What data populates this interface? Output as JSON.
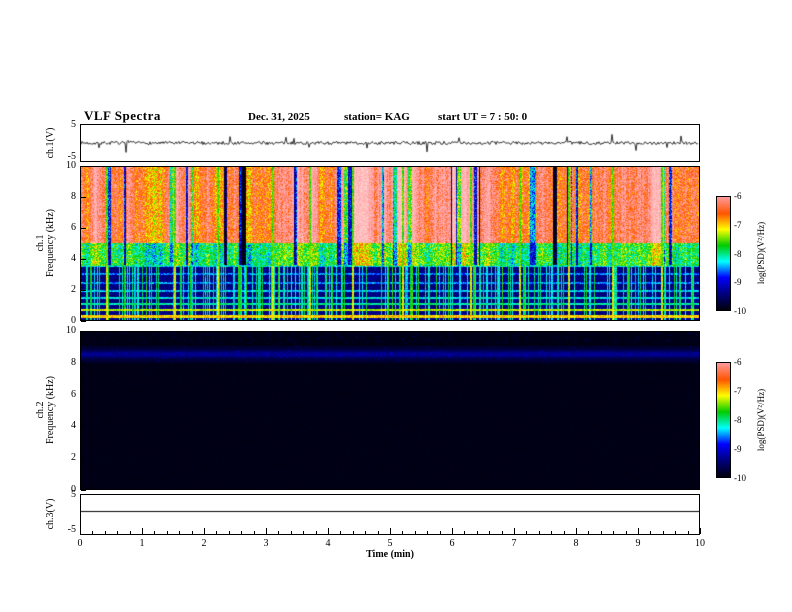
{
  "header": {
    "title": "VLF Spectra",
    "date": "Dec. 31, 2025",
    "station": "station= KAG",
    "start_ut": "start UT = 7 : 50: 0"
  },
  "axes": {
    "time_label": "Time (min)",
    "time_ticks": [
      "0",
      "1",
      "2",
      "3",
      "4",
      "5",
      "6",
      "7",
      "8",
      "9",
      "10"
    ],
    "freq_ticks": [
      "10",
      "8",
      "6",
      "4",
      "2",
      "0"
    ],
    "volt_ticks": [
      "5",
      "-5"
    ]
  },
  "panels": {
    "ch1_wave_label": "ch.1(V)",
    "ch1_spec_label1": "ch.1",
    "ch1_spec_label2": "Frequency (kHz)",
    "ch2_spec_label1": "ch.2",
    "ch2_spec_label2": "Frequency (kHz)",
    "ch3_wave_label": "ch.3(V)"
  },
  "colorbar": {
    "label": "log(PSD)(V²/Hz)",
    "ticks": [
      "-6",
      "-7",
      "-8",
      "-9",
      "-10"
    ],
    "range": [
      -10,
      -6
    ],
    "colors": [
      "#000010",
      "#00007f",
      "#0000ff",
      "#00ffff",
      "#00cc00",
      "#ffff00",
      "#ff5500",
      "#ff9999"
    ]
  },
  "chart_data": [
    {
      "type": "line",
      "id": "ch1_waveform",
      "ylabel": "ch.1(V)",
      "xlim": [
        0,
        10
      ],
      "ylim": [
        -5,
        5
      ],
      "baseline": 0,
      "noise_amplitude_V": 0.45,
      "spike_amplitude_V": 2.5,
      "spike_rate": 0.04,
      "line_color": "#000000",
      "seed": 7,
      "description": "Noisy ch.1 voltage trace centred on 0 V with sporadic impulsive spikes"
    },
    {
      "type": "heatmap",
      "id": "ch1_spectrogram",
      "xlabel": "Time (min)",
      "ylabel": "Frequency (kHz)",
      "xlim": [
        0,
        10
      ],
      "ylim": [
        0,
        10
      ],
      "zlim": [
        -10,
        -6
      ],
      "z_units": "log(PSD)(V²/Hz)",
      "bands": [
        {
          "f_range": [
            5,
            10
          ],
          "mean_level": -6.6,
          "description": "intense broadband hiss (red/yellow/white) with vertical striations and dark dropouts"
        },
        {
          "f_range": [
            3.5,
            5
          ],
          "mean_level": -8.0,
          "description": "moderate mixed blue/green/red structure"
        },
        {
          "f_range": [
            0,
            3.5
          ],
          "mean_level": -9.6,
          "description": "weak dark-blue background crossed by vertical sferic spikes"
        }
      ],
      "narrowband_lines_kHz": [
        0.2,
        0.6,
        1.0,
        1.4,
        1.9,
        2.4,
        3.0,
        3.5
      ],
      "narrowband_levels": [
        -7.0,
        -7.3,
        -8.1,
        -8.3,
        -8.4,
        -8.6,
        -8.6,
        -8.4
      ],
      "strong_sferic_times_min": [
        0.4,
        1.5,
        2.2,
        3.1,
        3.7,
        4.4,
        5.2,
        6.3,
        7.1,
        7.9,
        8.6,
        9.4
      ],
      "seed": 11
    },
    {
      "type": "heatmap",
      "id": "ch2_spectrogram",
      "xlabel": "Time (min)",
      "ylabel": "Frequency (kHz)",
      "xlim": [
        0,
        10
      ],
      "ylim": [
        0,
        10
      ],
      "zlim": [
        -10,
        -6
      ],
      "bands": [
        {
          "f_range": [
            8.1,
            9.1
          ],
          "mean_level": -9.4,
          "description": "faint dark-blue band of weak emissions around 8.6 kHz"
        },
        {
          "f_range": [
            0,
            10
          ],
          "mean_level": -10,
          "description": "otherwise black, below noise floor"
        }
      ],
      "seed": 23
    },
    {
      "type": "line",
      "id": "ch3_waveform",
      "ylabel": "ch.3(V)",
      "xlim": [
        0,
        10
      ],
      "ylim": [
        -5,
        5
      ],
      "constant_value_V": 1.0,
      "line_color": "#000000",
      "description": "Flat ch.3 voltage trace at about +1 V"
    }
  ]
}
